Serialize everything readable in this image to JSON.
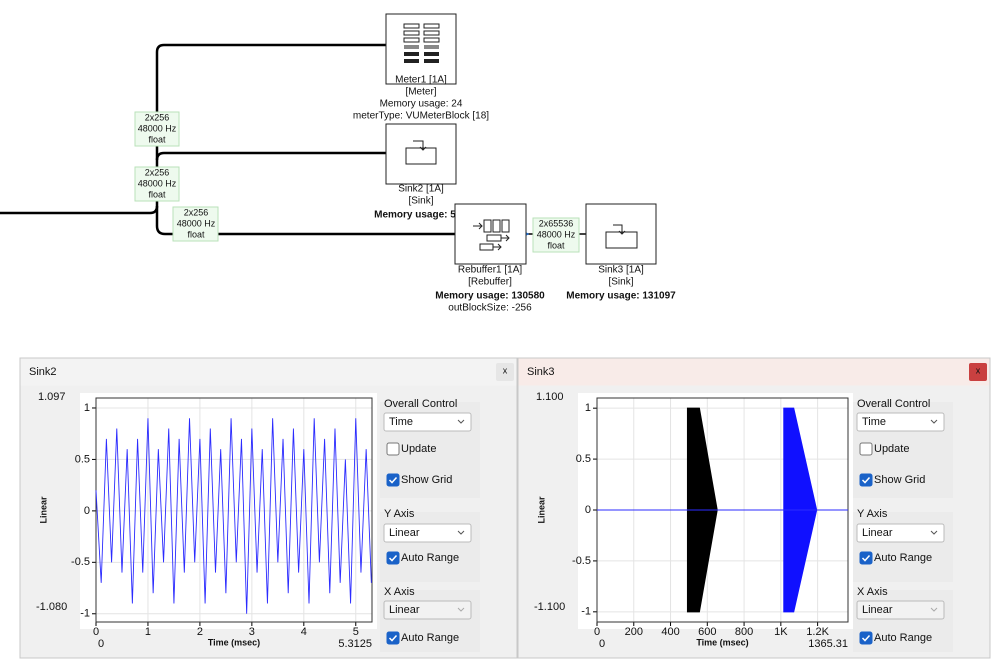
{
  "diagram": {
    "nodes": [
      {
        "lines": [
          "Meter1 [1A]",
          "[Meter]",
          "Memory usage: 24",
          "meterType: VUMeterBlock [18]"
        ]
      },
      {
        "lines": [
          "Sink2 [1A]",
          "[Sink]",
          "Memory usage: 5"
        ]
      },
      {
        "lines": [
          "Rebuffer1 [1A]",
          "[Rebuffer]",
          "Memory usage: 130580",
          "outBlockSize: -256"
        ]
      },
      {
        "lines": [
          "Sink3 [1A]",
          "[Sink]",
          "Memory usage: 131097"
        ]
      }
    ],
    "edge_labels": [
      [
        "2x256",
        "48000 Hz",
        "float"
      ],
      [
        "2x256",
        "48000 Hz",
        "float"
      ],
      [
        "2x256",
        "48000 Hz",
        "float"
      ],
      [
        "2x65536",
        "48000 Hz",
        "float"
      ]
    ]
  },
  "windows": [
    {
      "title": "Sink2",
      "close": "x",
      "active": false,
      "range_labels": {
        "y_max": "1.097",
        "y_min": "-1.080",
        "x_min": "0",
        "x_max": "5.3125"
      },
      "controls": {
        "overall_control": "Overall Control",
        "mode": "Time",
        "update": "Update",
        "update_checked": false,
        "show_grid": "Show Grid",
        "show_grid_checked": true,
        "y_axis": "Y Axis",
        "y_scale": "Linear",
        "y_auto_range": "Auto Range",
        "y_auto_range_checked": true,
        "x_axis": "X Axis",
        "x_scale": "Linear",
        "x_auto_range": "Auto Range",
        "x_auto_range_checked": true
      }
    },
    {
      "title": "Sink3",
      "close": "x",
      "active": true,
      "range_labels": {
        "y_max": "1.100",
        "y_min": "-1.100",
        "x_min": "0",
        "x_max": "1365.31"
      },
      "controls": {
        "overall_control": "Overall Control",
        "mode": "Time",
        "update": "Update",
        "update_checked": false,
        "show_grid": "Show Grid",
        "show_grid_checked": true,
        "y_axis": "Y Axis",
        "y_scale": "Linear",
        "y_auto_range": "Auto Range",
        "y_auto_range_checked": true,
        "x_axis": "X Axis",
        "x_scale": "Linear",
        "x_auto_range": "Auto Range",
        "x_auto_range_checked": true
      }
    }
  ],
  "chart_data": [
    {
      "type": "line",
      "x_label": "Time (msec)",
      "y_label": "Linear",
      "xlim": [
        0,
        5.3125
      ],
      "ylim": [
        -1.08,
        1.097
      ],
      "xticks": [
        0,
        1,
        2,
        3,
        4,
        5
      ],
      "yticks": [
        -1,
        -0.5,
        0,
        0.5,
        1
      ],
      "grid": true,
      "series": [
        {
          "color": "#2b2bff",
          "x": [
            0,
            0.1,
            0.2,
            0.3,
            0.4,
            0.5,
            0.6,
            0.7,
            0.8,
            0.9,
            1.0,
            1.1,
            1.2,
            1.3,
            1.4,
            1.5,
            1.6,
            1.7,
            1.8,
            1.9,
            2.0,
            2.1,
            2.2,
            2.3,
            2.4,
            2.5,
            2.6,
            2.7,
            2.8,
            2.9,
            3.0,
            3.1,
            3.2,
            3.3,
            3.4,
            3.5,
            3.6,
            3.7,
            3.8,
            3.9,
            4.0,
            4.1,
            4.2,
            4.3,
            4.4,
            4.5,
            4.6,
            4.7,
            4.8,
            4.9,
            5.0,
            5.1,
            5.2,
            5.3
          ],
          "values": [
            0.2,
            -0.7,
            0.7,
            -0.5,
            0.8,
            -0.6,
            0.6,
            -0.9,
            0.7,
            -0.6,
            0.9,
            -0.8,
            0.6,
            -0.5,
            0.8,
            -0.9,
            0.7,
            -0.6,
            0.9,
            -0.5,
            0.7,
            -0.9,
            0.8,
            -0.6,
            0.6,
            -0.8,
            0.9,
            -0.5,
            0.7,
            -1.0,
            0.8,
            -0.6,
            0.6,
            -0.9,
            0.9,
            -0.5,
            0.7,
            -0.8,
            0.8,
            -0.6,
            0.6,
            -0.9,
            0.9,
            -0.5,
            0.7,
            -0.8,
            0.8,
            -0.7,
            0.5,
            -0.9,
            0.9,
            -0.6,
            0.6,
            -0.7
          ]
        }
      ]
    },
    {
      "type": "line",
      "x_label": "Time (msec)",
      "y_label": "Linear",
      "xlim": [
        0,
        1365.31
      ],
      "ylim": [
        -1.1,
        1.1
      ],
      "xticks": [
        0,
        200,
        400,
        600,
        800,
        {
          "value": 1000,
          "label": "1K"
        },
        {
          "value": 1200,
          "label": "1.2K"
        }
      ],
      "yticks": [
        -1,
        -0.5,
        0,
        0.5,
        1
      ],
      "grid": true,
      "series": [
        {
          "color": "#2b2bff",
          "x": [
            0,
            1365.31
          ],
          "values": [
            0,
            0
          ]
        }
      ],
      "bands": [
        {
          "color": "#000000",
          "x": [
            492,
            557,
            654
          ],
          "upper": [
            1,
            1,
            0
          ],
          "lower": [
            -1,
            -1,
            0
          ]
        },
        {
          "color": "#1010ff",
          "x": [
            1016,
            1070,
            1195
          ],
          "upper": [
            1,
            1,
            0
          ],
          "lower": [
            -1,
            -1,
            0
          ]
        }
      ]
    }
  ]
}
